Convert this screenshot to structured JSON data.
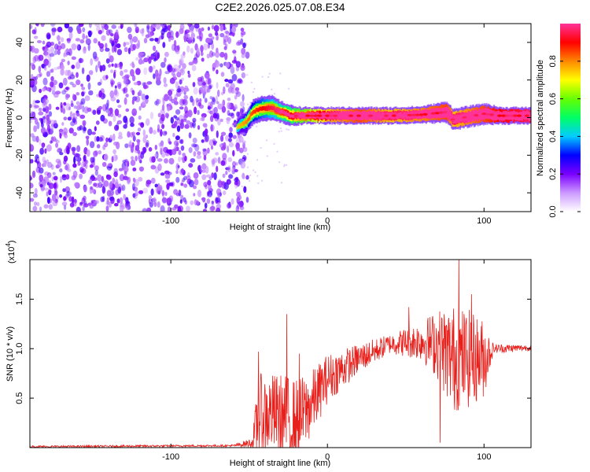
{
  "title": "C2E2.2026.025.07.08.E34",
  "chart_data": [
    {
      "type": "heatmap",
      "xlabel": "Height of straight line (km)",
      "ylabel": "Frequency (Hz)",
      "xlim": [
        -190,
        130
      ],
      "ylim": [
        -50,
        50
      ],
      "xticks": [
        -100,
        0,
        100
      ],
      "xtick_labels": [
        "-100",
        "0",
        "100"
      ],
      "yticks": [
        -40,
        -20,
        0,
        20,
        40
      ],
      "ytick_labels": [
        "-40",
        "-20",
        "0",
        "20",
        "40"
      ],
      "noise_region_x": [
        -190,
        -55
      ],
      "noise_region_y": [
        -50,
        50
      ],
      "signal_track": [
        {
          "x": -58,
          "freq": -5,
          "width": 4,
          "amp": 0.15
        },
        {
          "x": -52,
          "freq": -2,
          "width": 5,
          "amp": 0.2
        },
        {
          "x": -48,
          "freq": 3,
          "width": 6,
          "amp": 0.25
        },
        {
          "x": -42,
          "freq": 5,
          "width": 6,
          "amp": 0.3
        },
        {
          "x": -36,
          "freq": 5,
          "width": 6,
          "amp": 0.35
        },
        {
          "x": -30,
          "freq": 3,
          "width": 5,
          "amp": 0.4
        },
        {
          "x": -24,
          "freq": 1,
          "width": 5,
          "amp": 0.45
        },
        {
          "x": -16,
          "freq": 1,
          "width": 4,
          "amp": 0.55
        },
        {
          "x": 0,
          "freq": 1,
          "width": 4,
          "amp": 0.7
        },
        {
          "x": 20,
          "freq": 1,
          "width": 4,
          "amp": 0.8
        },
        {
          "x": 40,
          "freq": 1,
          "width": 4,
          "amp": 0.7
        },
        {
          "x": 60,
          "freq": 1.5,
          "width": 4,
          "amp": 0.75
        },
        {
          "x": 76,
          "freq": 3,
          "width": 5,
          "amp": 0.8
        },
        {
          "x": 80,
          "freq": -1,
          "width": 5,
          "amp": 0.7
        },
        {
          "x": 100,
          "freq": 2,
          "width": 5,
          "amp": 0.8
        },
        {
          "x": 110,
          "freq": 1,
          "width": 4,
          "amp": 0.85
        },
        {
          "x": 130,
          "freq": 1,
          "width": 4,
          "amp": 0.9
        }
      ],
      "colorbar": {
        "label": "Normalized spectral amplitude",
        "range": [
          0,
          1
        ],
        "ticks": [
          0.0,
          0.2,
          0.4,
          0.6,
          0.8
        ],
        "tick_labels": [
          "0.0",
          "0.2",
          "0.4",
          "0.6",
          "0.8"
        ],
        "colormap": [
          "#ffffff",
          "#cc99ff",
          "#7a00ff",
          "#0000ff",
          "#00ccff",
          "#00ff66",
          "#66ff00",
          "#ffff00",
          "#ff8800",
          "#ff0000",
          "#ff3399"
        ]
      }
    },
    {
      "type": "line",
      "xlabel": "Height of straight line (km)",
      "ylabel": "SNR (10 * v/v)",
      "y_scale_label": "(x10",
      "y_scale_exponent": "4",
      "y_scale_close": ")",
      "xlim": [
        -190,
        130
      ],
      "ylim": [
        0,
        1.9
      ],
      "xticks": [
        -100,
        0,
        100
      ],
      "xtick_labels": [
        "-100",
        "0",
        "100"
      ],
      "yticks": [
        0.5,
        1.0,
        1.5
      ],
      "ytick_labels": [
        "0.5",
        "1.0",
        "1.5"
      ],
      "series": [
        {
          "name": "SNR",
          "color": "#e8201c",
          "envelope": [
            {
              "x": -190,
              "base": 0.01,
              "noise": 0.01
            },
            {
              "x": -60,
              "base": 0.02,
              "noise": 0.01
            },
            {
              "x": -48,
              "base": 0.05,
              "noise": 0.05
            },
            {
              "x": -44,
              "base": 0.3,
              "noise": 0.45
            },
            {
              "x": -36,
              "base": 0.35,
              "noise": 0.4
            },
            {
              "x": -28,
              "base": 0.3,
              "noise": 0.45
            },
            {
              "x": -20,
              "base": 0.25,
              "noise": 0.45
            },
            {
              "x": -12,
              "base": 0.4,
              "noise": 0.35
            },
            {
              "x": 0,
              "base": 0.7,
              "noise": 0.25
            },
            {
              "x": 20,
              "base": 0.9,
              "noise": 0.15
            },
            {
              "x": 40,
              "base": 1.05,
              "noise": 0.1
            },
            {
              "x": 60,
              "base": 1.08,
              "noise": 0.2
            },
            {
              "x": 70,
              "base": 1.05,
              "noise": 0.35
            },
            {
              "x": 80,
              "base": 0.9,
              "noise": 0.55
            },
            {
              "x": 90,
              "base": 0.9,
              "noise": 0.5
            },
            {
              "x": 100,
              "base": 0.9,
              "noise": 0.4
            },
            {
              "x": 106,
              "base": 1.0,
              "noise": 0.05
            },
            {
              "x": 130,
              "base": 1.01,
              "noise": 0.03
            }
          ],
          "peaks": [
            {
              "x": -44,
              "y": 0.97
            },
            {
              "x": -26,
              "y": 1.35
            },
            {
              "x": -18,
              "y": 0.95
            },
            {
              "x": 52,
              "y": 1.42
            },
            {
              "x": 72,
              "y": 0.05
            },
            {
              "x": 84,
              "y": 1.9
            },
            {
              "x": 92,
              "y": 1.55
            }
          ]
        }
      ]
    }
  ]
}
